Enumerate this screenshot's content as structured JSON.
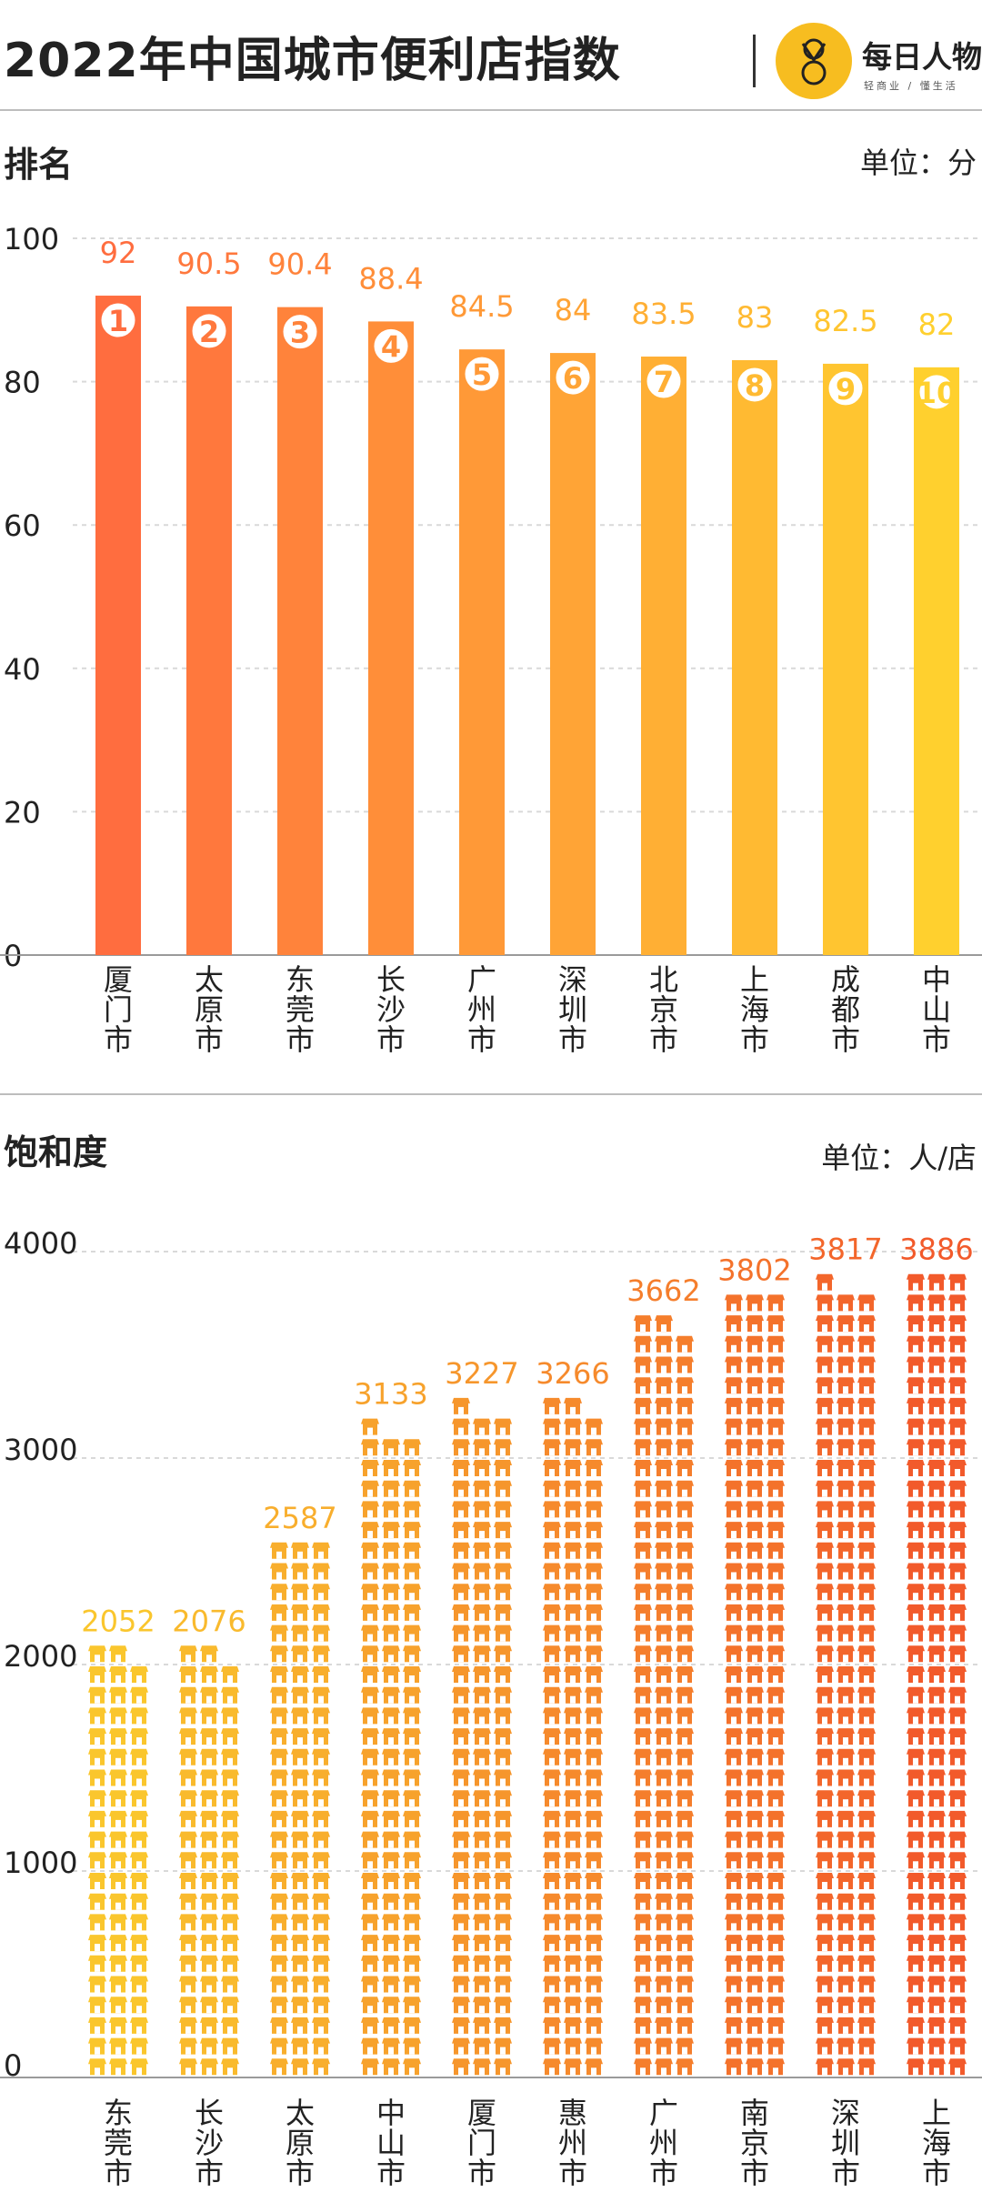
{
  "header": {
    "title": "2022年中国城市便利店指数",
    "brand_name": "每日人物",
    "brand_slogan": "轻商业 / 懂生活"
  },
  "sections": {
    "ranking_title": "排名",
    "ranking_unit": "单位：分",
    "saturation_title": "饱和度",
    "saturation_unit": "单位：人/店"
  },
  "colors": {
    "ranking_gradient": [
      "#ff6d3f",
      "#ffd02e"
    ],
    "saturation_gradient": [
      "#fac62d",
      "#f25a2b"
    ],
    "grid": "#d9d9d9",
    "axis": "#9a9a9a"
  },
  "chart_data": [
    {
      "type": "bar",
      "title": "排名",
      "ylabel": "单位：分",
      "ylim": [
        0,
        100
      ],
      "yticks": [
        0,
        20,
        40,
        60,
        80,
        100
      ],
      "grid": true,
      "categories": [
        "厦门市",
        "太原市",
        "东莞市",
        "长沙市",
        "广州市",
        "深圳市",
        "北京市",
        "上海市",
        "成都市",
        "中山市"
      ],
      "values": [
        92,
        90.5,
        90.4,
        88.4,
        84.5,
        84,
        83.5,
        83,
        82.5,
        82
      ],
      "value_labels": [
        "92",
        "90.5",
        "90.4",
        "88.4",
        "84.5",
        "84",
        "83.5",
        "83",
        "82.5",
        "82"
      ],
      "ranks": [
        "1",
        "2",
        "3",
        "4",
        "5",
        "6",
        "7",
        "8",
        "9",
        "10"
      ]
    },
    {
      "type": "bar",
      "title": "饱和度",
      "ylabel": "单位：人/店",
      "ylim": [
        0,
        4000
      ],
      "yticks": [
        0,
        1000,
        2000,
        3000,
        4000
      ],
      "grid": true,
      "categories": [
        "东莞市",
        "长沙市",
        "太原市",
        "中山市",
        "厦门市",
        "惠州市",
        "广州市",
        "南京市",
        "深圳市",
        "上海市"
      ],
      "values": [
        2052,
        2076,
        2587,
        3133,
        3227,
        3266,
        3662,
        3802,
        3817,
        3886
      ],
      "value_labels": [
        "2052",
        "2076",
        "2587",
        "3133",
        "3227",
        "3266",
        "3662",
        "3802",
        "3817",
        "3886"
      ]
    }
  ]
}
